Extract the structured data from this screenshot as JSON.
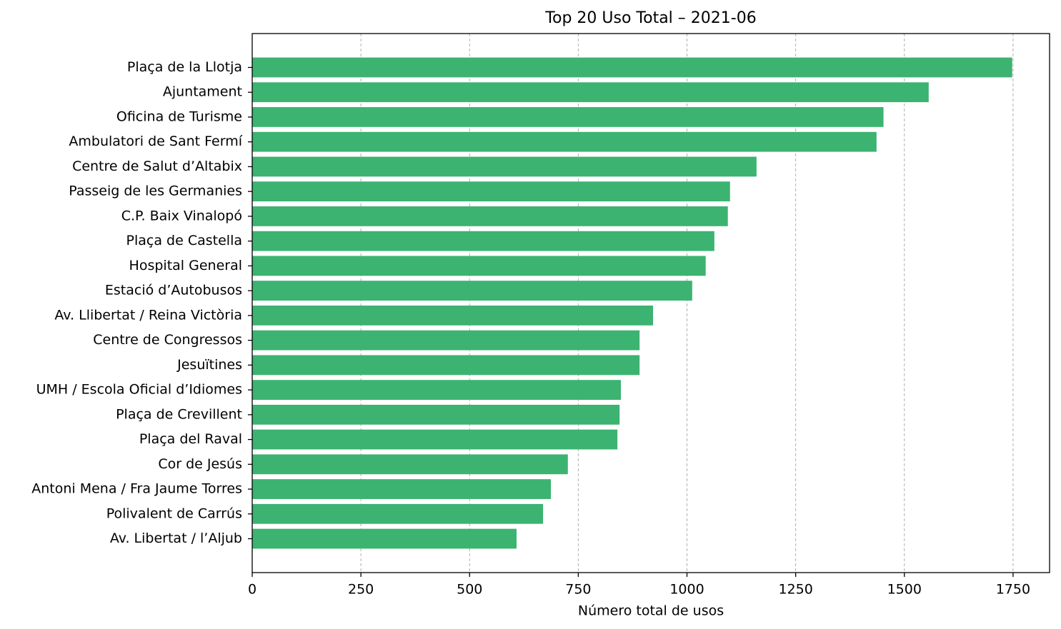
{
  "chart_data": {
    "type": "barh",
    "title": "Top 20 Uso Total – 2021-06",
    "x_label": "Número total de usos",
    "categories": [
      "Plaça de la Llotja",
      "Ajuntament",
      "Oficina de Turisme",
      "Ambulatori de Sant Fermí",
      "Centre de Salut d’Altabix",
      "Passeig de les Germanies",
      "C.P. Baix Vinalopó",
      "Plaça de Castella",
      "Hospital General",
      "Estació d’Autobusos",
      "Av. Llibertat / Reina Victòria",
      "Centre de Congressos",
      "Jesuïtines",
      "UMH / Escola Oficial d’Idiomes",
      "Plaça de Crevillent",
      "Plaça del Raval",
      "Cor de Jesús",
      "Antoni Mena / Fra Jaume Torres",
      "Polivalent de Carrús",
      "Av. Libertat / l’Aljub"
    ],
    "values": [
      1748,
      1556,
      1452,
      1436,
      1160,
      1099,
      1094,
      1063,
      1043,
      1012,
      922,
      891,
      891,
      848,
      845,
      840,
      726,
      687,
      669,
      608
    ],
    "color": "#3cb371",
    "xlim": [
      0,
      1834
    ],
    "xticks": [
      0,
      250,
      500,
      750,
      1000,
      1250,
      1500,
      1750
    ],
    "grid": true
  }
}
